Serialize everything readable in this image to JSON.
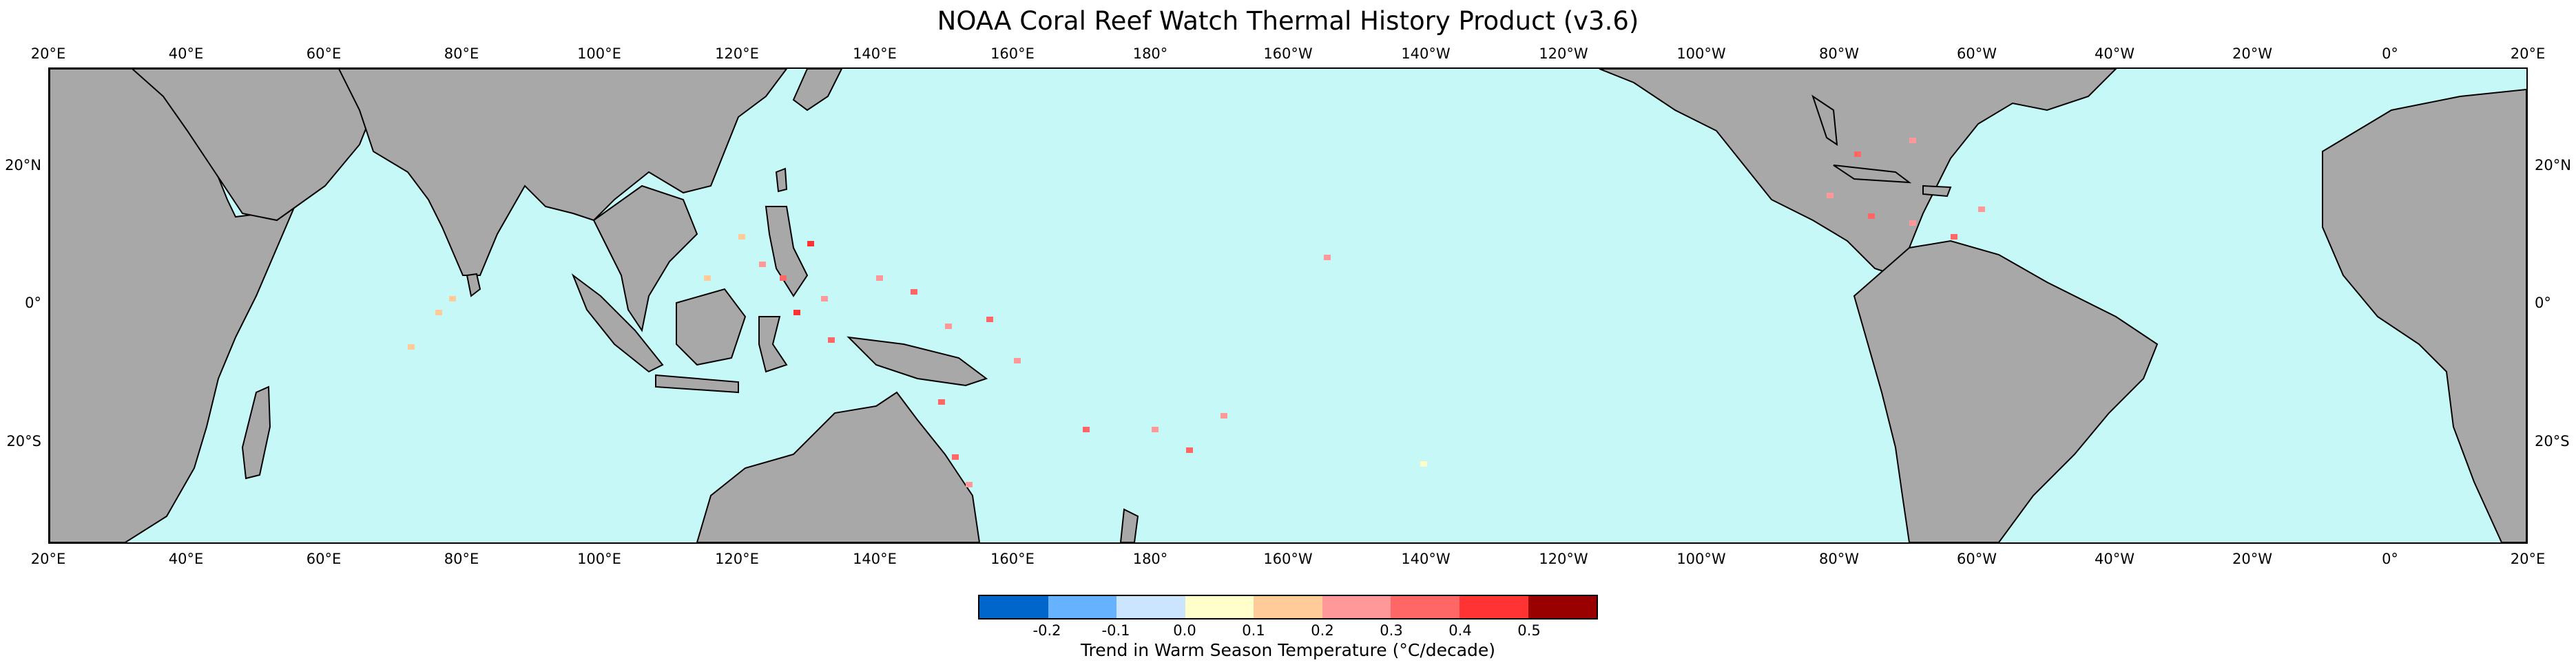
{
  "title": "NOAA Coral Reef Watch Thermal History Product (v3.6)",
  "lon_ticks": [
    "20°E",
    "40°E",
    "60°E",
    "80°E",
    "100°E",
    "120°E",
    "140°E",
    "160°E",
    "180°",
    "160°W",
    "140°W",
    "120°W",
    "100°W",
    "80°W",
    "60°W",
    "40°W",
    "20°W",
    "0°",
    "20°E"
  ],
  "lat_ticks": [
    "20°N",
    "0°",
    "20°S"
  ],
  "colors": {
    "ocean": "#c6f8f7",
    "land": "#a8a8a8",
    "coast": "#000000"
  },
  "colorbar": {
    "colors": [
      "#0066cc",
      "#66b2ff",
      "#cce5ff",
      "#ffffcc",
      "#ffcc99",
      "#ff9999",
      "#ff6666",
      "#ff3333",
      "#990000"
    ],
    "tick_labels": [
      "-0.2",
      "-0.1",
      "0.0",
      "0.1",
      "0.2",
      "0.3",
      "0.4",
      "0.5"
    ],
    "label": "Trend in Warm Season Temperature (°C/decade)"
  }
}
